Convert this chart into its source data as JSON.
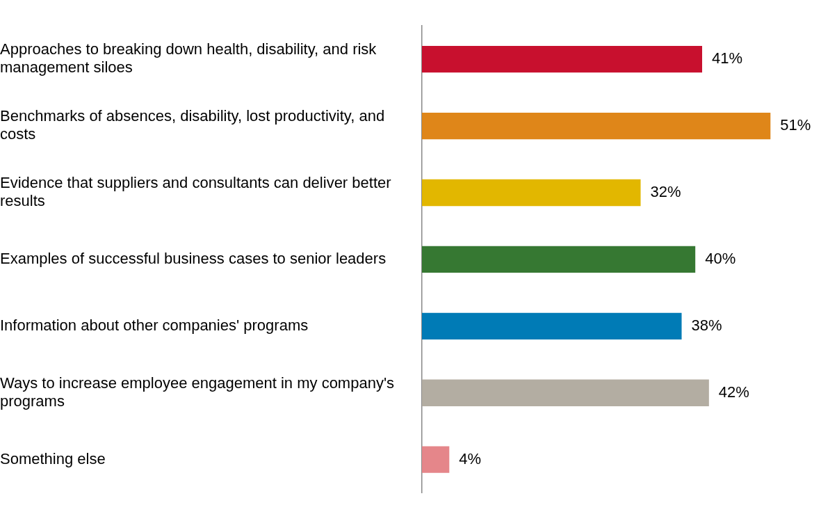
{
  "chart_data": {
    "type": "bar",
    "orientation": "horizontal",
    "categories": [
      "Approaches to breaking down health, disability, and risk management siloes",
      "Benchmarks of absences, disability, lost productivity, and costs",
      "Evidence that suppliers and consultants can deliver better results",
      "Examples of successful business cases to senior leaders",
      "Information about other companies' programs",
      "Ways to increase employee engagement in my company's programs",
      "Something else"
    ],
    "values": [
      41,
      51,
      32,
      40,
      38,
      42,
      4
    ],
    "colors": [
      "#c8102e",
      "#df8619",
      "#e2b700",
      "#367832",
      "#007bb6",
      "#b3ada2",
      "#e5868a"
    ],
    "value_labels": [
      "41%",
      "51%",
      "32%",
      "40%",
      "38%",
      "42%",
      "4%"
    ]
  }
}
